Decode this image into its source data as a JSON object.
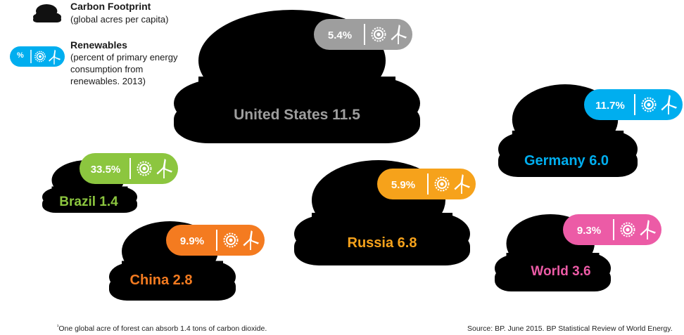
{
  "legend": {
    "carbon": {
      "title": "Carbon Footprint",
      "subtitle": "(global acres per capita)"
    },
    "renewables": {
      "title": "Renewables",
      "subtitle": "(percent of primary energy  consumption from renewables. 2013)",
      "badge_symbol": "%",
      "badge_color": "#00aeef"
    }
  },
  "clouds": [
    {
      "key": "us",
      "country": "United States",
      "footprint": "11.5",
      "renewables": "5.4%",
      "color": "#9e9e9e"
    },
    {
      "key": "germany",
      "country": "Germany",
      "footprint": "6.0",
      "renewables": "11.7%",
      "color": "#00aeef"
    },
    {
      "key": "brazil",
      "country": "Brazil",
      "footprint": "1.4",
      "renewables": "33.5%",
      "color": "#8cc63f"
    },
    {
      "key": "russia",
      "country": "Russia",
      "footprint": "6.8",
      "renewables": "5.9%",
      "color": "#f6a21b"
    },
    {
      "key": "china",
      "country": "China",
      "footprint": "2.8",
      "renewables": "9.9%",
      "color": "#f47b20"
    },
    {
      "key": "world",
      "country": "World",
      "footprint": "3.6",
      "renewables": "9.3%",
      "color": "#ec5ba6"
    }
  ],
  "icons": {
    "cloud": "cloud-icon",
    "sun": "sun-icon",
    "wind": "wind-turbine-icon"
  },
  "footnote": {
    "marker": "¹",
    "text": "One global acre of forest can absorb  1.4 tons of carbon dioxide."
  },
  "source": "Source: BP. June 2015. BP Statistical Review of World Energy."
}
